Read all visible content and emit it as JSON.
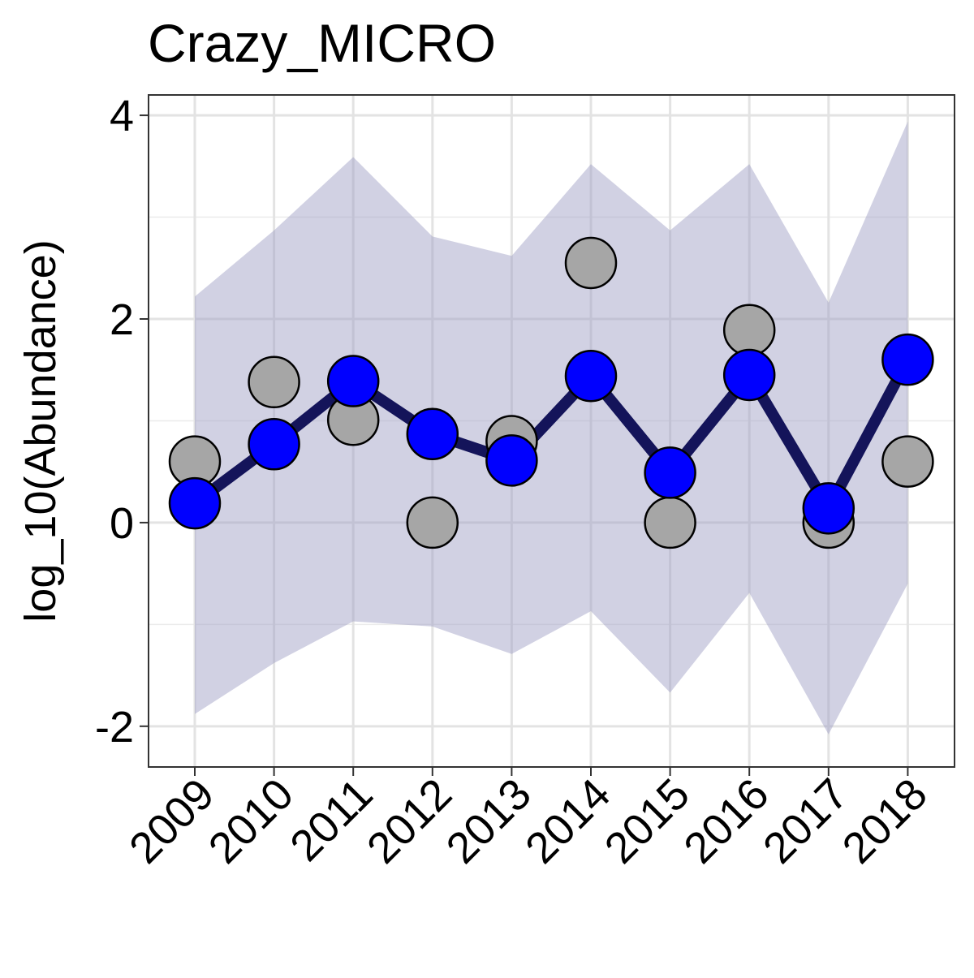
{
  "chart_data": {
    "type": "line",
    "title": "Crazy_MICRO",
    "xlabel": "",
    "ylabel": "log_10(Abundance)",
    "categories": [
      "2009",
      "2010",
      "2011",
      "2012",
      "2013",
      "2014",
      "2015",
      "2016",
      "2017",
      "2018"
    ],
    "ylim": [
      -2.4,
      4.2
    ],
    "yticks": [
      -2,
      0,
      2,
      4
    ],
    "ytick_labels": [
      "-2",
      "0",
      "2",
      "4"
    ],
    "grid": true,
    "legend": "none",
    "series": [
      {
        "role": "fitted",
        "marker_color": "#0000FF",
        "line_color": "#14145A",
        "values": [
          0.19,
          0.77,
          1.39,
          0.87,
          0.61,
          1.44,
          0.49,
          1.45,
          0.14,
          1.6
        ]
      },
      {
        "role": "observed",
        "marker_color": "#A6A6A6",
        "values": [
          0.6,
          1.38,
          1.01,
          0.0,
          0.8,
          2.55,
          0.0,
          1.89,
          0.0,
          0.6
        ]
      }
    ],
    "band": {
      "color": "#9E9EC4",
      "lower": [
        -1.88,
        -1.38,
        -0.97,
        -1.02,
        -1.29,
        -0.87,
        -1.67,
        -0.69,
        -2.08,
        -0.6
      ],
      "upper": [
        2.22,
        2.87,
        3.59,
        2.81,
        2.62,
        3.52,
        2.87,
        3.52,
        2.16,
        3.94
      ]
    }
  }
}
